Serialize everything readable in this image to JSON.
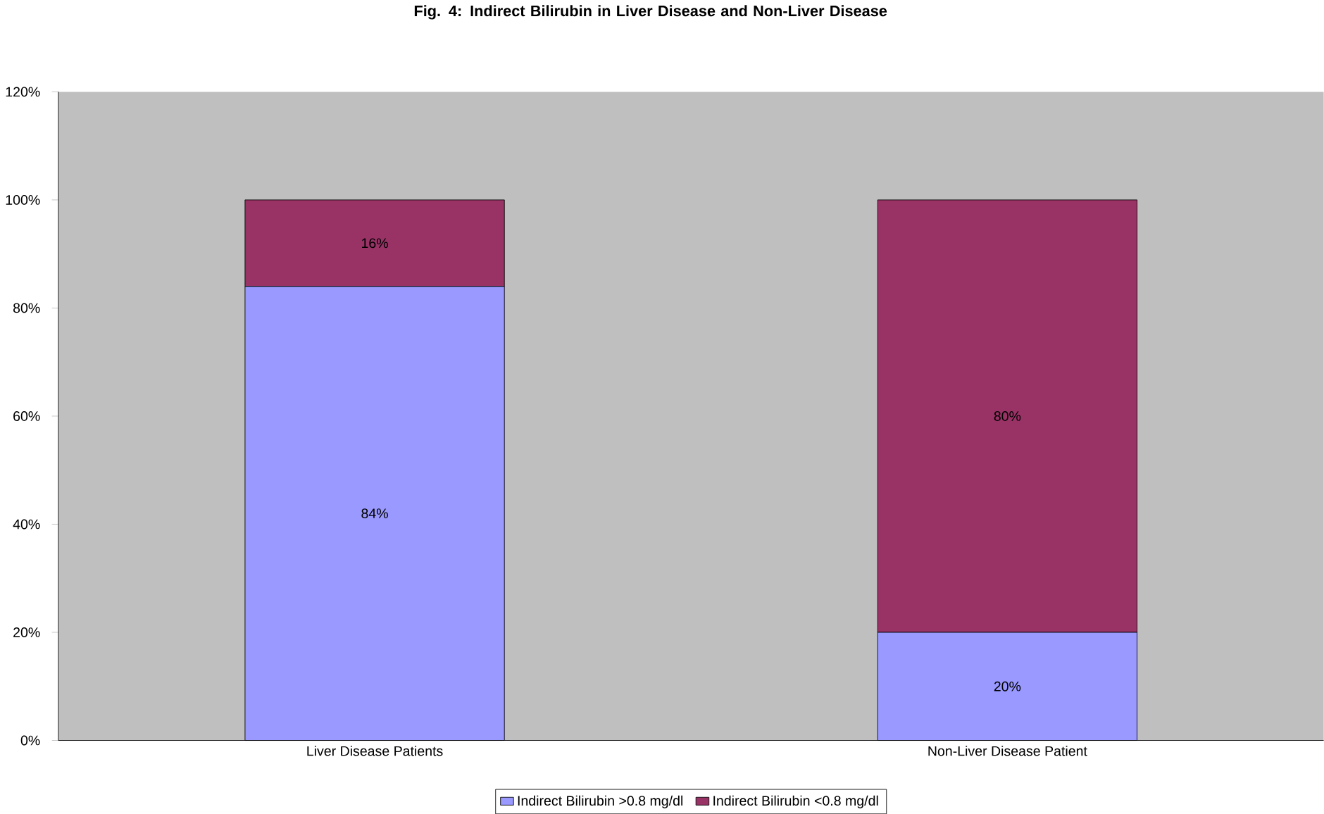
{
  "chart_data": {
    "type": "bar",
    "title": "Fig. 4: Indirect Bilirubin in Liver Disease and Non-Liver Disease",
    "categories": [
      "Liver Disease Patients",
      "Non-Liver Disease Patient"
    ],
    "stacked": true,
    "series": [
      {
        "name": "Indirect Bilirubin >0.8 mg/dl",
        "color": "#9999ff",
        "values": [
          84,
          20
        ],
        "value_labels": [
          "84%",
          "20%"
        ]
      },
      {
        "name": "Indirect Bilirubin <0.8 mg/dl",
        "color": "#993366",
        "values": [
          16,
          80
        ],
        "value_labels": [
          "16%",
          "80%"
        ]
      }
    ],
    "ylim": [
      0,
      120
    ],
    "yticks": [
      {
        "value": 0,
        "label": "0%"
      },
      {
        "value": 20,
        "label": "20%"
      },
      {
        "value": 40,
        "label": "40%"
      },
      {
        "value": 60,
        "label": "60%"
      },
      {
        "value": 80,
        "label": "80%"
      },
      {
        "value": 100,
        "label": "100%"
      },
      {
        "value": 120,
        "label": "120%"
      }
    ],
    "grid": false,
    "legend": "bottom"
  }
}
